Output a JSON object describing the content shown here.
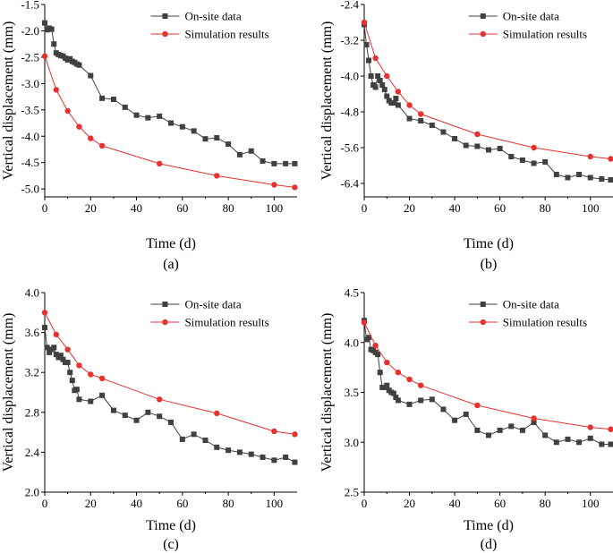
{
  "colors": {
    "onsite": "#404040",
    "simulation": "#e8312f"
  },
  "chart_data": [
    {
      "type": "line",
      "panel_label": "(a)",
      "xlabel": "Time (d)",
      "ylabel": "Vertical displacement (mm)",
      "xlim": [
        0,
        110
      ],
      "ylim": [
        -5.15,
        -1.5
      ],
      "xticks": [
        0,
        20,
        40,
        60,
        80,
        100
      ],
      "yticks": [
        -5.0,
        -4.5,
        -4.0,
        -3.5,
        -3.0,
        -2.5,
        -2.0,
        -1.5
      ],
      "xtick_labels": [
        "0",
        "20",
        "40",
        "60",
        "80",
        "100"
      ],
      "ytick_labels": [
        "-5.0",
        "-4.5",
        "-4.0",
        "-3.5",
        "-3.0",
        "-2.5",
        "-2.0",
        "-1.5"
      ],
      "legend_position": "top-right",
      "series": [
        {
          "name": "On-site data",
          "marker": "square",
          "x": [
            0,
            1,
            2,
            3,
            4,
            5,
            6,
            7,
            8,
            9,
            10,
            11,
            12,
            13,
            14,
            15,
            20,
            25,
            30,
            35,
            40,
            45,
            50,
            55,
            60,
            65,
            70,
            75,
            80,
            85,
            90,
            95,
            100,
            105,
            109
          ],
          "y": [
            -1.85,
            -1.98,
            -1.95,
            -1.97,
            -2.25,
            -2.42,
            -2.45,
            -2.47,
            -2.48,
            -2.52,
            -2.55,
            -2.53,
            -2.58,
            -2.6,
            -2.63,
            -2.65,
            -2.85,
            -3.28,
            -3.3,
            -3.45,
            -3.6,
            -3.65,
            -3.62,
            -3.75,
            -3.82,
            -3.9,
            -4.05,
            -4.03,
            -4.15,
            -4.35,
            -4.28,
            -4.47,
            -4.52,
            -4.52,
            -4.52
          ]
        },
        {
          "name": "Simulation results",
          "marker": "circle",
          "x": [
            0,
            5,
            10,
            15,
            20,
            25,
            50,
            75,
            100,
            109
          ],
          "y": [
            -2.48,
            -3.12,
            -3.52,
            -3.82,
            -4.04,
            -4.18,
            -4.52,
            -4.75,
            -4.92,
            -4.97
          ]
        }
      ]
    },
    {
      "type": "line",
      "panel_label": "(b)",
      "xlabel": "Time (d)",
      "ylabel": "Vertical displacement (mm)",
      "xlim": [
        0,
        110
      ],
      "ylim": [
        -6.7,
        -2.4
      ],
      "xticks": [
        0,
        20,
        40,
        60,
        80,
        100
      ],
      "yticks": [
        -6.4,
        -5.6,
        -4.8,
        -4.0,
        -3.2,
        -2.4
      ],
      "xtick_labels": [
        "0",
        "20",
        "40",
        "60",
        "80",
        "100"
      ],
      "ytick_labels": [
        "-6.4",
        "-5.6",
        "-4.8",
        "-4.0",
        "-3.2",
        "-2.4"
      ],
      "legend_position": "top-right",
      "series": [
        {
          "name": "On-site data",
          "marker": "square",
          "x": [
            0,
            1,
            2,
            3,
            4,
            5,
            6,
            7,
            8,
            9,
            10,
            11,
            12,
            13,
            14,
            15,
            20,
            25,
            30,
            35,
            40,
            45,
            50,
            55,
            60,
            65,
            70,
            75,
            80,
            85,
            90,
            95,
            100,
            105,
            109
          ],
          "y": [
            -2.85,
            -3.3,
            -3.65,
            -4.0,
            -4.2,
            -4.25,
            -4.0,
            -4.1,
            -4.2,
            -4.3,
            -4.45,
            -4.55,
            -4.6,
            -4.6,
            -4.5,
            -4.65,
            -4.95,
            -5.0,
            -5.1,
            -5.25,
            -5.4,
            -5.55,
            -5.57,
            -5.65,
            -5.62,
            -5.8,
            -5.88,
            -5.95,
            -5.92,
            -6.2,
            -6.27,
            -6.2,
            -6.27,
            -6.3,
            -6.32
          ]
        },
        {
          "name": "Simulation results",
          "marker": "circle",
          "x": [
            0,
            5,
            10,
            15,
            20,
            25,
            50,
            75,
            100,
            109
          ],
          "y": [
            -2.8,
            -3.6,
            -4.0,
            -4.35,
            -4.65,
            -4.85,
            -5.3,
            -5.6,
            -5.8,
            -5.85
          ]
        }
      ]
    },
    {
      "type": "line",
      "panel_label": "(c)",
      "xlabel": "Time (d)",
      "ylabel": "Vertical displacement (mm)",
      "xlim": [
        0,
        110
      ],
      "ylim": [
        2.0,
        4.0
      ],
      "xticks": [
        0,
        20,
        40,
        60,
        80,
        100
      ],
      "yticks": [
        2.0,
        2.4,
        2.8,
        3.2,
        3.6,
        4.0
      ],
      "xtick_labels": [
        "0",
        "20",
        "40",
        "60",
        "80",
        "100"
      ],
      "ytick_labels": [
        "2.0",
        "2.4",
        "2.8",
        "3.2",
        "3.6",
        "4.0"
      ],
      "legend_position": "top-right",
      "series": [
        {
          "name": "On-site data",
          "marker": "square",
          "x": [
            0,
            1,
            2,
            3,
            4,
            5,
            6,
            7,
            8,
            9,
            10,
            11,
            12,
            13,
            14,
            15,
            20,
            25,
            30,
            35,
            40,
            45,
            50,
            55,
            60,
            65,
            70,
            75,
            80,
            85,
            90,
            95,
            100,
            105,
            109
          ],
          "y": [
            3.65,
            3.45,
            3.4,
            3.43,
            3.45,
            3.38,
            3.35,
            3.37,
            3.33,
            3.3,
            3.3,
            3.2,
            3.12,
            3.02,
            3.03,
            2.93,
            2.91,
            2.97,
            2.82,
            2.77,
            2.72,
            2.8,
            2.76,
            2.7,
            2.53,
            2.58,
            2.52,
            2.45,
            2.42,
            2.4,
            2.38,
            2.35,
            2.32,
            2.35,
            2.3
          ]
        },
        {
          "name": "Simulation results",
          "marker": "circle",
          "x": [
            0,
            5,
            10,
            15,
            20,
            25,
            50,
            75,
            100,
            109
          ],
          "y": [
            3.8,
            3.58,
            3.43,
            3.27,
            3.18,
            3.14,
            2.93,
            2.79,
            2.61,
            2.58
          ]
        }
      ]
    },
    {
      "type": "line",
      "panel_label": "(d)",
      "xlabel": "Time (d)",
      "ylabel": "Vertical displacement (mm)",
      "xlim": [
        0,
        110
      ],
      "ylim": [
        2.5,
        4.5
      ],
      "xticks": [
        0,
        20,
        40,
        60,
        80,
        100
      ],
      "yticks": [
        2.5,
        3.0,
        3.5,
        4.0,
        4.5
      ],
      "xtick_labels": [
        "0",
        "20",
        "40",
        "60",
        "80",
        "100"
      ],
      "ytick_labels": [
        "2.5",
        "3.0",
        "3.5",
        "4.0",
        "4.5"
      ],
      "legend_position": "top-right",
      "series": [
        {
          "name": "On-site data",
          "marker": "square",
          "x": [
            0,
            1,
            2,
            3,
            4,
            5,
            6,
            7,
            8,
            9,
            10,
            11,
            12,
            13,
            14,
            15,
            20,
            25,
            30,
            35,
            40,
            45,
            50,
            55,
            60,
            65,
            70,
            75,
            80,
            85,
            90,
            95,
            100,
            105,
            109
          ],
          "y": [
            4.22,
            4.03,
            4.05,
            3.93,
            3.92,
            3.9,
            3.88,
            3.7,
            3.55,
            3.55,
            3.57,
            3.52,
            3.5,
            3.49,
            3.45,
            3.42,
            3.38,
            3.42,
            3.43,
            3.33,
            3.22,
            3.28,
            3.12,
            3.07,
            3.12,
            3.16,
            3.12,
            3.2,
            3.07,
            3.0,
            3.03,
            3.0,
            3.04,
            2.98,
            2.98
          ]
        },
        {
          "name": "Simulation results",
          "marker": "circle",
          "x": [
            0,
            5,
            10,
            15,
            20,
            25,
            50,
            75,
            100,
            109
          ],
          "y": [
            4.2,
            3.97,
            3.8,
            3.7,
            3.63,
            3.57,
            3.37,
            3.24,
            3.15,
            3.13
          ]
        }
      ]
    }
  ]
}
